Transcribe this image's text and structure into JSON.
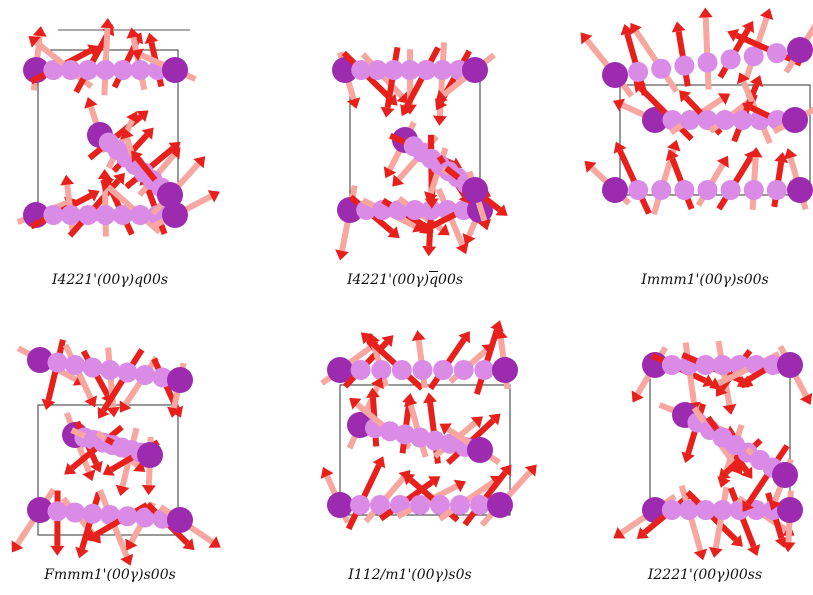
{
  "figure": {
    "colors": {
      "arrow": "#e8201c",
      "arrow_light": "#f7a6a0",
      "atom": "#9c2bb0",
      "atom_light": "#d98be6",
      "cell_line": "#333333"
    },
    "panels": [
      {
        "id": "p1",
        "caption": {
          "prefix": "I4221'(00γ)",
          "sym": "q",
          "suffix": "00s"
        }
      },
      {
        "id": "p2",
        "caption": {
          "prefix": "I4221'(00γ)",
          "sym": "q",
          "suffix": "00s",
          "overbar": true
        }
      },
      {
        "id": "p3",
        "caption": {
          "prefix": "Immm1'(00γ)",
          "sym": "s",
          "suffix": "00s"
        }
      },
      {
        "id": "p4",
        "caption": {
          "prefix": "Fmmm1'(00γ)",
          "sym": "s",
          "suffix": "00s"
        }
      },
      {
        "id": "p5",
        "caption": {
          "prefix": "I112/m1'(00γ)",
          "sym": "s",
          "suffix": "0s"
        }
      },
      {
        "id": "p6",
        "caption": {
          "prefix": "I2221'(00γ)",
          "sym": "",
          "suffix": "00ss"
        }
      }
    ]
  }
}
